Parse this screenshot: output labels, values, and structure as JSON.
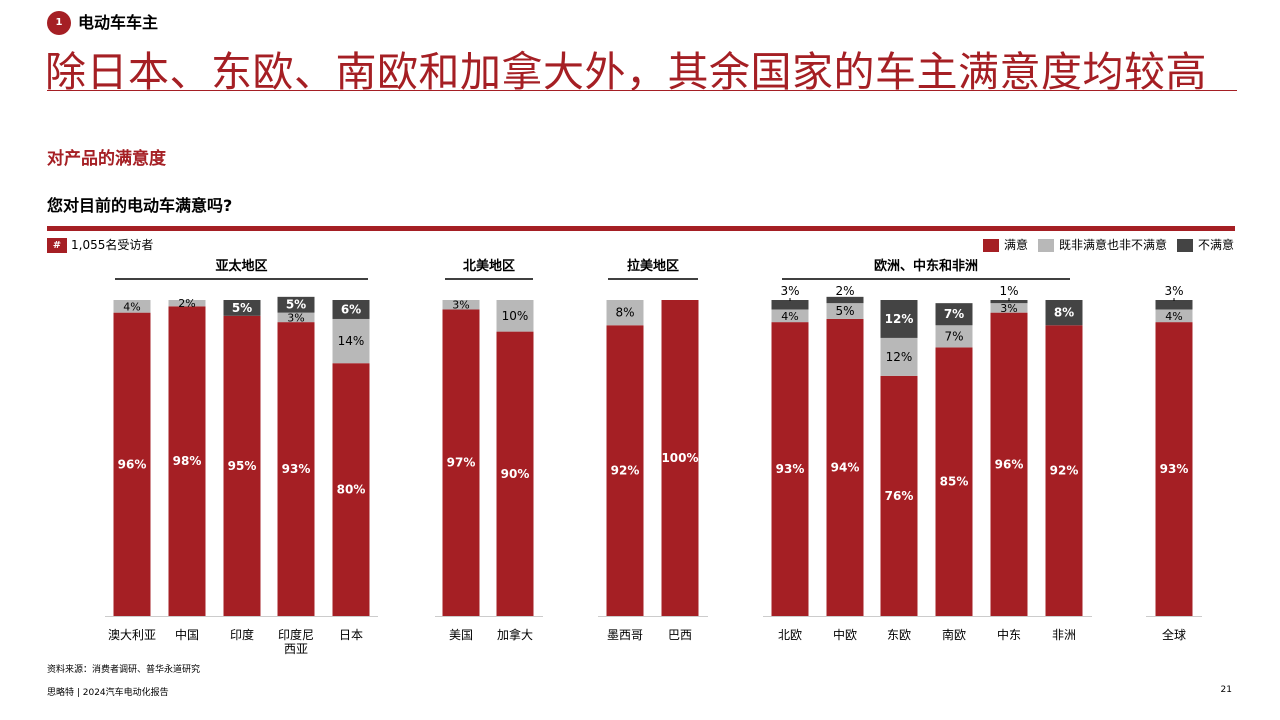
{
  "section": {
    "number": "1",
    "label": "电动车车主"
  },
  "headline": "除日本、东欧、南欧和加拿大外，其余国家的车主满意度均较高",
  "subtitle": "对产品的满意度",
  "question": "您对目前的电动车满意吗?",
  "respondents": {
    "badge": "#",
    "text": "1,055名受访者"
  },
  "legend": [
    {
      "label": "满意",
      "color": "#a51f24"
    },
    {
      "label": "既非满意也非不满意",
      "color": "#b8b8b8"
    },
    {
      "label": "不满意",
      "color": "#444444"
    }
  ],
  "chart_data": {
    "type": "bar",
    "stacked": true,
    "ylim": [
      0,
      100
    ],
    "groups": [
      {
        "name": "亚太地区",
        "categories": [
          "澳大利亚",
          "中国",
          "印度",
          "印度尼西亚",
          "日本"
        ]
      },
      {
        "name": "北美地区",
        "categories": [
          "美国",
          "加拿大"
        ]
      },
      {
        "name": "拉美地区",
        "categories": [
          "墨西哥",
          "巴西"
        ]
      },
      {
        "name": "欧洲、中东和非洲",
        "categories": [
          "北欧",
          "中欧",
          "东欧",
          "南欧",
          "中东",
          "非洲"
        ]
      },
      {
        "name": "",
        "categories": [
          "全球"
        ]
      }
    ],
    "categories": [
      "澳大利亚",
      "中国",
      "印度",
      "印度尼西亚",
      "日本",
      "美国",
      "加拿大",
      "墨西哥",
      "巴西",
      "北欧",
      "中欧",
      "东欧",
      "南欧",
      "中东",
      "非洲",
      "全球"
    ],
    "category_display": [
      "澳大利亚",
      "中国",
      "印度",
      "印度尼\n西亚",
      "日本",
      "美国",
      "加拿大",
      "墨西哥",
      "巴西",
      "北欧",
      "中欧",
      "东欧",
      "南欧",
      "中东",
      "非洲",
      "全球"
    ],
    "series": [
      {
        "name": "满意",
        "color": "#a51f24",
        "values": [
          96,
          98,
          95,
          93,
          80,
          97,
          90,
          92,
          100,
          93,
          94,
          76,
          85,
          96,
          92,
          93
        ]
      },
      {
        "name": "既非满意也非不满意",
        "color": "#b8b8b8",
        "values": [
          4,
          2,
          0,
          3,
          14,
          3,
          10,
          8,
          0,
          4,
          5,
          12,
          7,
          3,
          0,
          4
        ]
      },
      {
        "name": "不满意",
        "color": "#444444",
        "values": [
          0,
          0,
          5,
          5,
          6,
          0,
          0,
          0,
          0,
          3,
          2,
          12,
          7,
          1,
          8,
          3
        ]
      }
    ]
  },
  "source": "资料来源：消费者调研、普华永道研究",
  "footer": "思略特 | 2024汽车电动化报告",
  "page": "21"
}
